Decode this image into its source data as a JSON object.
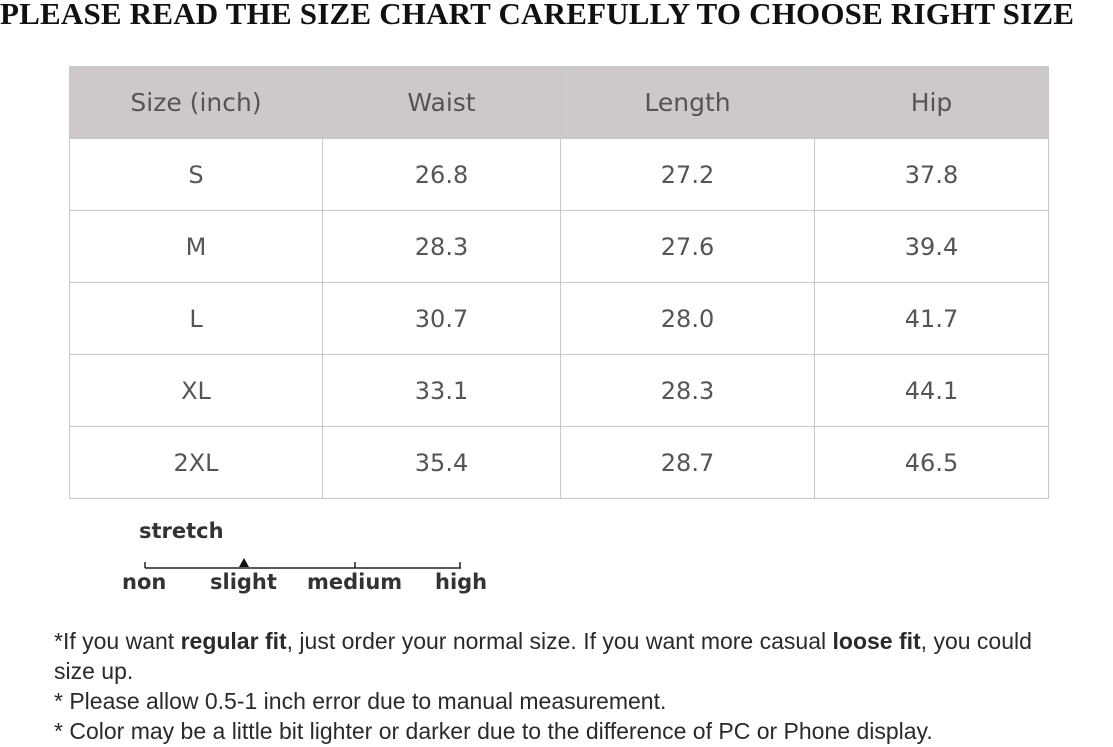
{
  "headline": "PLEASE READ THE SIZE CHART CAREFULLY TO CHOOSE RIGHT SIZE",
  "table": {
    "headers": [
      "Size  (inch)",
      "Waist",
      "Length",
      "Hip"
    ],
    "rows": [
      [
        "S",
        "26.8",
        "27.2",
        "37.8"
      ],
      [
        "M",
        "28.3",
        "27.6",
        "39.4"
      ],
      [
        "L",
        "30.7",
        "28.0",
        "41.7"
      ],
      [
        "XL",
        "33.1",
        "28.3",
        "44.1"
      ],
      [
        "2XL",
        "35.4",
        "28.7",
        "46.5"
      ]
    ]
  },
  "stretch": {
    "label": "stretch",
    "levels": [
      "non",
      "slight",
      "medium",
      "high"
    ],
    "selected": "slight"
  },
  "notes": {
    "line1_a": "*If you want ",
    "line1_b": "regular fit",
    "line1_c": ", just order your normal size. If you want more casual ",
    "line1_d": "loose fit",
    "line1_e": ", you could size up.",
    "line2": "* Please allow 0.5-1 inch error due to manual measurement.",
    "line3": "* Color may be a little bit lighter or darker due to the difference of PC or Phone display."
  }
}
